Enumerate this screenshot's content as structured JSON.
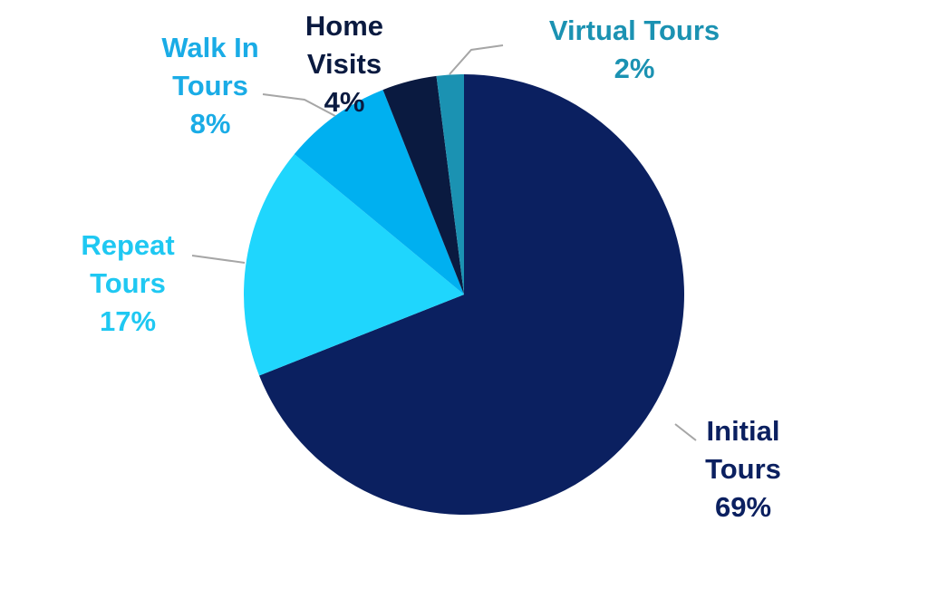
{
  "chart_data": {
    "type": "pie",
    "categories": [
      "Initial Tours",
      "Repeat Tours",
      "Walk In Tours",
      "Home Visits",
      "Virtual Tours"
    ],
    "values": [
      69,
      17,
      8,
      4,
      2
    ],
    "value_labels": [
      "69%",
      "17%",
      "8%",
      "4%",
      "2%"
    ],
    "colors": [
      "#0b2060",
      "#1fd6fd",
      "#00b0f0",
      "#0a1a40",
      "#1b92b2"
    ]
  }
}
